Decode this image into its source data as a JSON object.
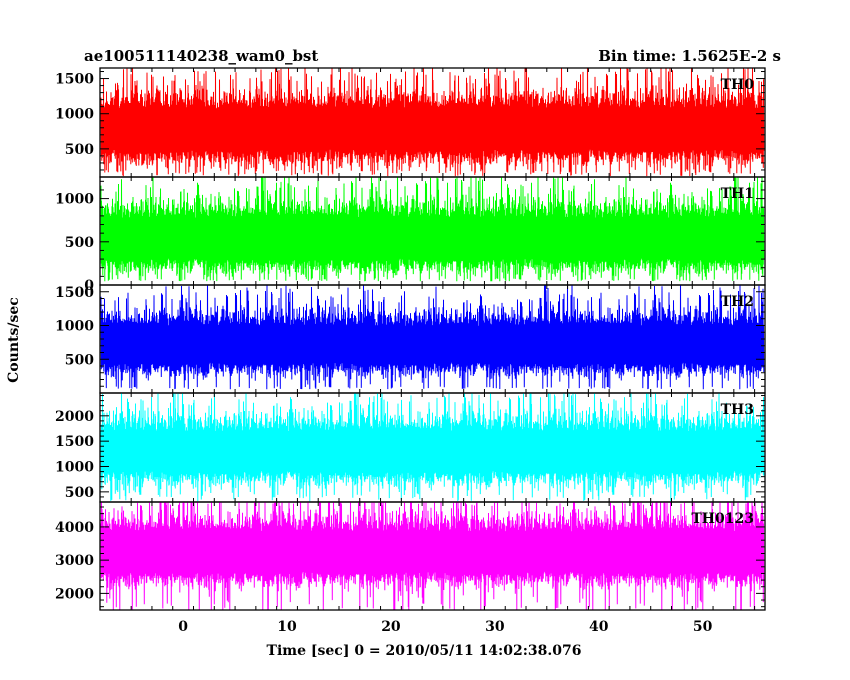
{
  "chart_data": {
    "type": "line",
    "title_left": "ae100511140238_wam0_bst",
    "title_right": "Bin time: 1.5625E-2 s",
    "xlabel": "Time [sec] 0 = 2010/05/11 14:02:38.076",
    "ylabel": "Counts/sec",
    "xlim": [
      -8,
      56
    ],
    "xticks": [
      0,
      10,
      20,
      30,
      40,
      50
    ],
    "bin_time_s": 0.015625,
    "grid": false,
    "panels": [
      {
        "name": "TH0",
        "color": "#ff0000",
        "ylim": [
          100,
          1650
        ],
        "yticks": [
          500,
          1000,
          1500
        ],
        "mean": 780,
        "spread": 290,
        "floor": 160
      },
      {
        "name": "TH1",
        "color": "#00ff00",
        "ylim": [
          0,
          1250
        ],
        "yticks": [
          0,
          500,
          1000
        ],
        "mean": 540,
        "spread": 235,
        "floor": 60
      },
      {
        "name": "TH2",
        "color": "#0000ff",
        "ylim": [
          0,
          1600
        ],
        "yticks": [
          500,
          1000,
          1500
        ],
        "mean": 720,
        "spread": 270,
        "floor": 80
      },
      {
        "name": "TH3",
        "color": "#00ffff",
        "ylim": [
          300,
          2450
        ],
        "yticks": [
          500,
          1000,
          1500,
          2000
        ],
        "mean": 1300,
        "spread": 390,
        "floor": 420
      },
      {
        "name": "TH0123",
        "color": "#ff00ff",
        "ylim": [
          1500,
          4750
        ],
        "yticks": [
          2000,
          3000,
          4000
        ],
        "mean": 3250,
        "spread": 600,
        "floor": 1600
      }
    ]
  }
}
